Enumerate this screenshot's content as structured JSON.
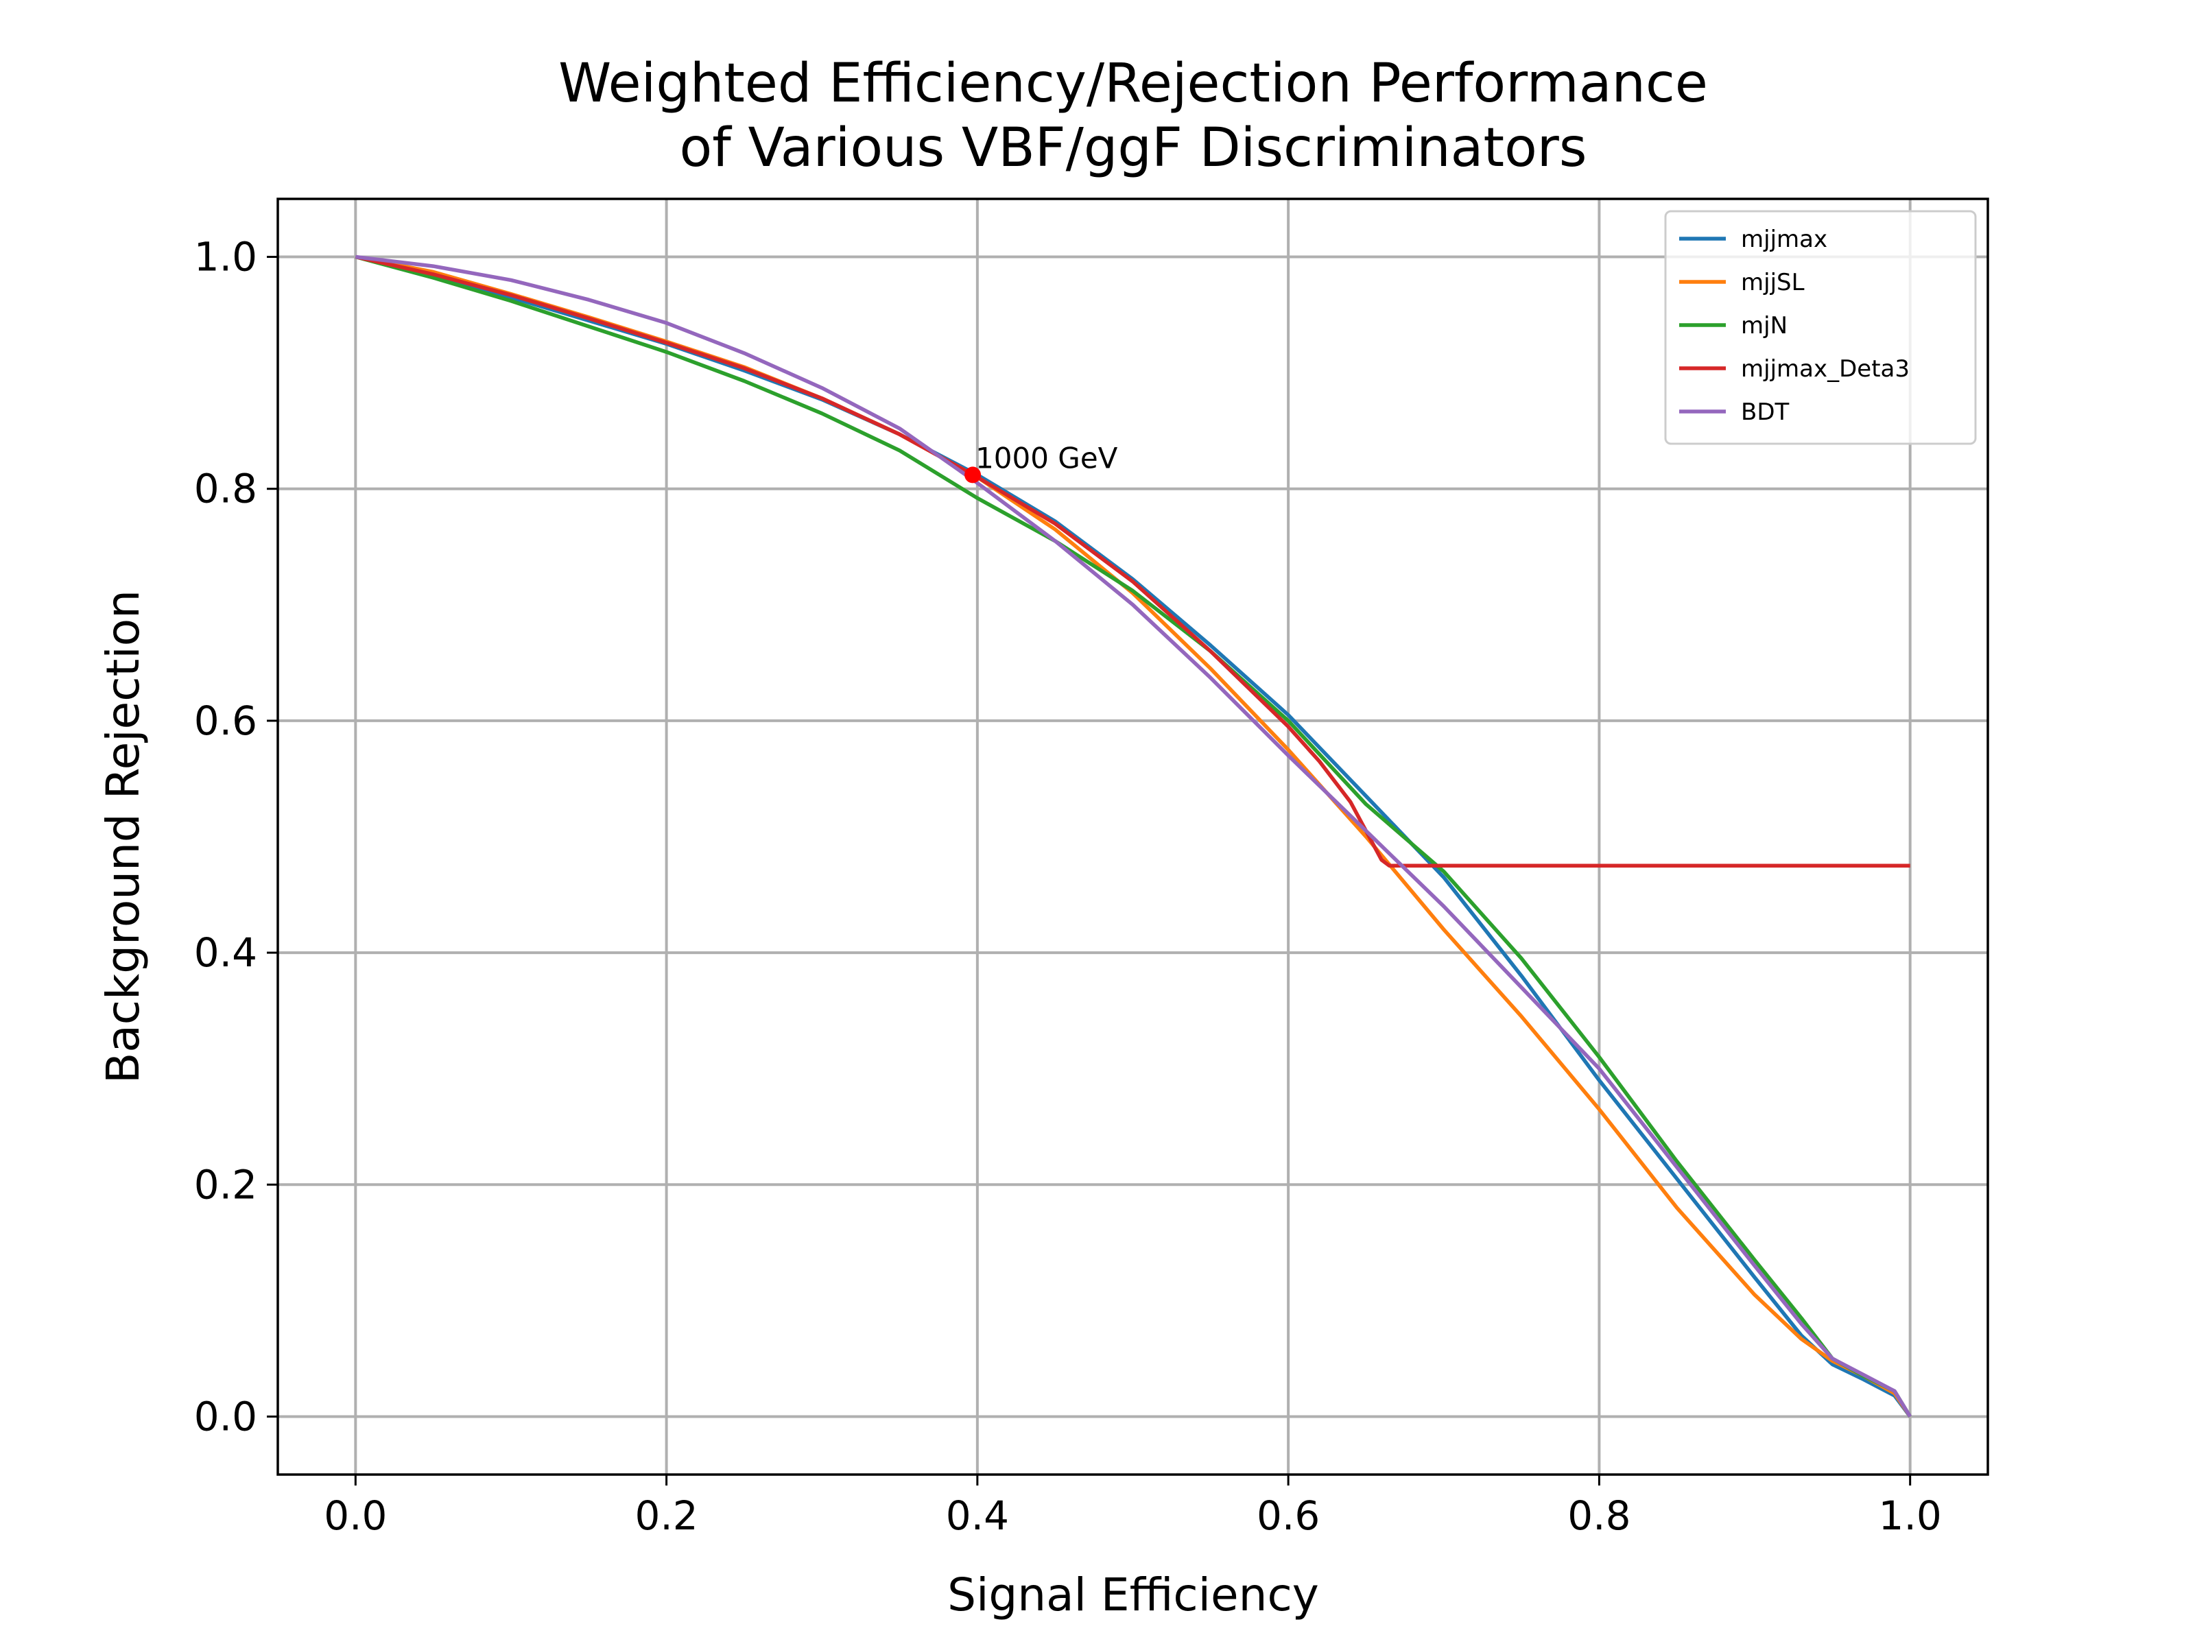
{
  "chart_data": {
    "type": "line",
    "title": [
      "Weighted Efficiency/Rejection Performance",
      "of Various VBF/ggF Discriminators"
    ],
    "xlabel": "Signal Efficiency",
    "ylabel": "Background Rejection",
    "xlim": [
      -0.05,
      1.05
    ],
    "ylim": [
      -0.05,
      1.05
    ],
    "xticks": [
      0.0,
      0.2,
      0.4,
      0.6,
      0.8,
      1.0
    ],
    "yticks": [
      0.0,
      0.2,
      0.4,
      0.6,
      0.8,
      1.0
    ],
    "tick_labels": [
      "0.0",
      "0.2",
      "0.4",
      "0.6",
      "0.8",
      "1.0"
    ],
    "grid": true,
    "legend_position": "top-right",
    "series": [
      {
        "name": "mjjmax",
        "color": "#1f77b4",
        "x": [
          0.0,
          0.05,
          0.1,
          0.15,
          0.2,
          0.25,
          0.3,
          0.35,
          0.4,
          0.45,
          0.5,
          0.55,
          0.6,
          0.65,
          0.7,
          0.75,
          0.8,
          0.85,
          0.9,
          0.93,
          0.95,
          0.97,
          0.99,
          1.0
        ],
        "y": [
          1.0,
          0.985,
          0.965,
          0.945,
          0.925,
          0.902,
          0.877,
          0.847,
          0.812,
          0.772,
          0.722,
          0.665,
          0.605,
          0.535,
          0.465,
          0.38,
          0.29,
          0.205,
          0.12,
          0.07,
          0.045,
          0.032,
          0.018,
          0.0
        ]
      },
      {
        "name": "mjjSL",
        "color": "#ff7f0e",
        "x": [
          0.0,
          0.05,
          0.1,
          0.15,
          0.2,
          0.25,
          0.3,
          0.35,
          0.4,
          0.45,
          0.5,
          0.55,
          0.6,
          0.65,
          0.7,
          0.75,
          0.8,
          0.85,
          0.9,
          0.93,
          0.95,
          0.97,
          0.99,
          1.0
        ],
        "y": [
          1.0,
          0.987,
          0.968,
          0.948,
          0.927,
          0.905,
          0.878,
          0.847,
          0.81,
          0.765,
          0.71,
          0.645,
          0.575,
          0.5,
          0.42,
          0.345,
          0.265,
          0.18,
          0.105,
          0.067,
          0.048,
          0.035,
          0.02,
          0.0
        ]
      },
      {
        "name": "mjN",
        "color": "#2ca02c",
        "x": [
          0.0,
          0.05,
          0.1,
          0.15,
          0.2,
          0.25,
          0.3,
          0.35,
          0.4,
          0.45,
          0.5,
          0.55,
          0.6,
          0.65,
          0.7,
          0.75,
          0.8,
          0.85,
          0.9,
          0.93,
          0.95,
          0.97,
          0.99,
          1.0
        ],
        "y": [
          1.0,
          0.982,
          0.962,
          0.94,
          0.918,
          0.893,
          0.865,
          0.833,
          0.792,
          0.755,
          0.712,
          0.66,
          0.6,
          0.528,
          0.47,
          0.395,
          0.31,
          0.22,
          0.135,
          0.085,
          0.05,
          0.035,
          0.022,
          0.0
        ]
      },
      {
        "name": "mjjmax_Deta3",
        "color": "#d62728",
        "x": [
          0.0,
          0.05,
          0.1,
          0.15,
          0.2,
          0.25,
          0.3,
          0.35,
          0.4,
          0.45,
          0.5,
          0.55,
          0.6,
          0.62,
          0.64,
          0.66,
          0.665,
          0.7,
          0.8,
          0.9,
          1.0
        ],
        "y": [
          1.0,
          0.985,
          0.967,
          0.947,
          0.926,
          0.904,
          0.878,
          0.847,
          0.81,
          0.77,
          0.72,
          0.66,
          0.595,
          0.565,
          0.53,
          0.48,
          0.475,
          0.475,
          0.475,
          0.475,
          0.475
        ]
      },
      {
        "name": "BDT",
        "color": "#9467bd",
        "x": [
          0.0,
          0.05,
          0.1,
          0.15,
          0.2,
          0.25,
          0.3,
          0.35,
          0.4,
          0.45,
          0.5,
          0.55,
          0.6,
          0.65,
          0.7,
          0.75,
          0.8,
          0.85,
          0.9,
          0.93,
          0.95,
          0.97,
          0.99,
          1.0
        ],
        "y": [
          1.0,
          0.992,
          0.98,
          0.963,
          0.943,
          0.917,
          0.887,
          0.852,
          0.805,
          0.755,
          0.7,
          0.637,
          0.57,
          0.505,
          0.44,
          0.37,
          0.3,
          0.215,
          0.13,
          0.08,
          0.05,
          0.036,
          0.022,
          0.0
        ]
      }
    ],
    "annotations": [
      {
        "text": "1000 GeV",
        "x": 0.397,
        "y": 0.812,
        "color": "#ff0000"
      }
    ]
  }
}
